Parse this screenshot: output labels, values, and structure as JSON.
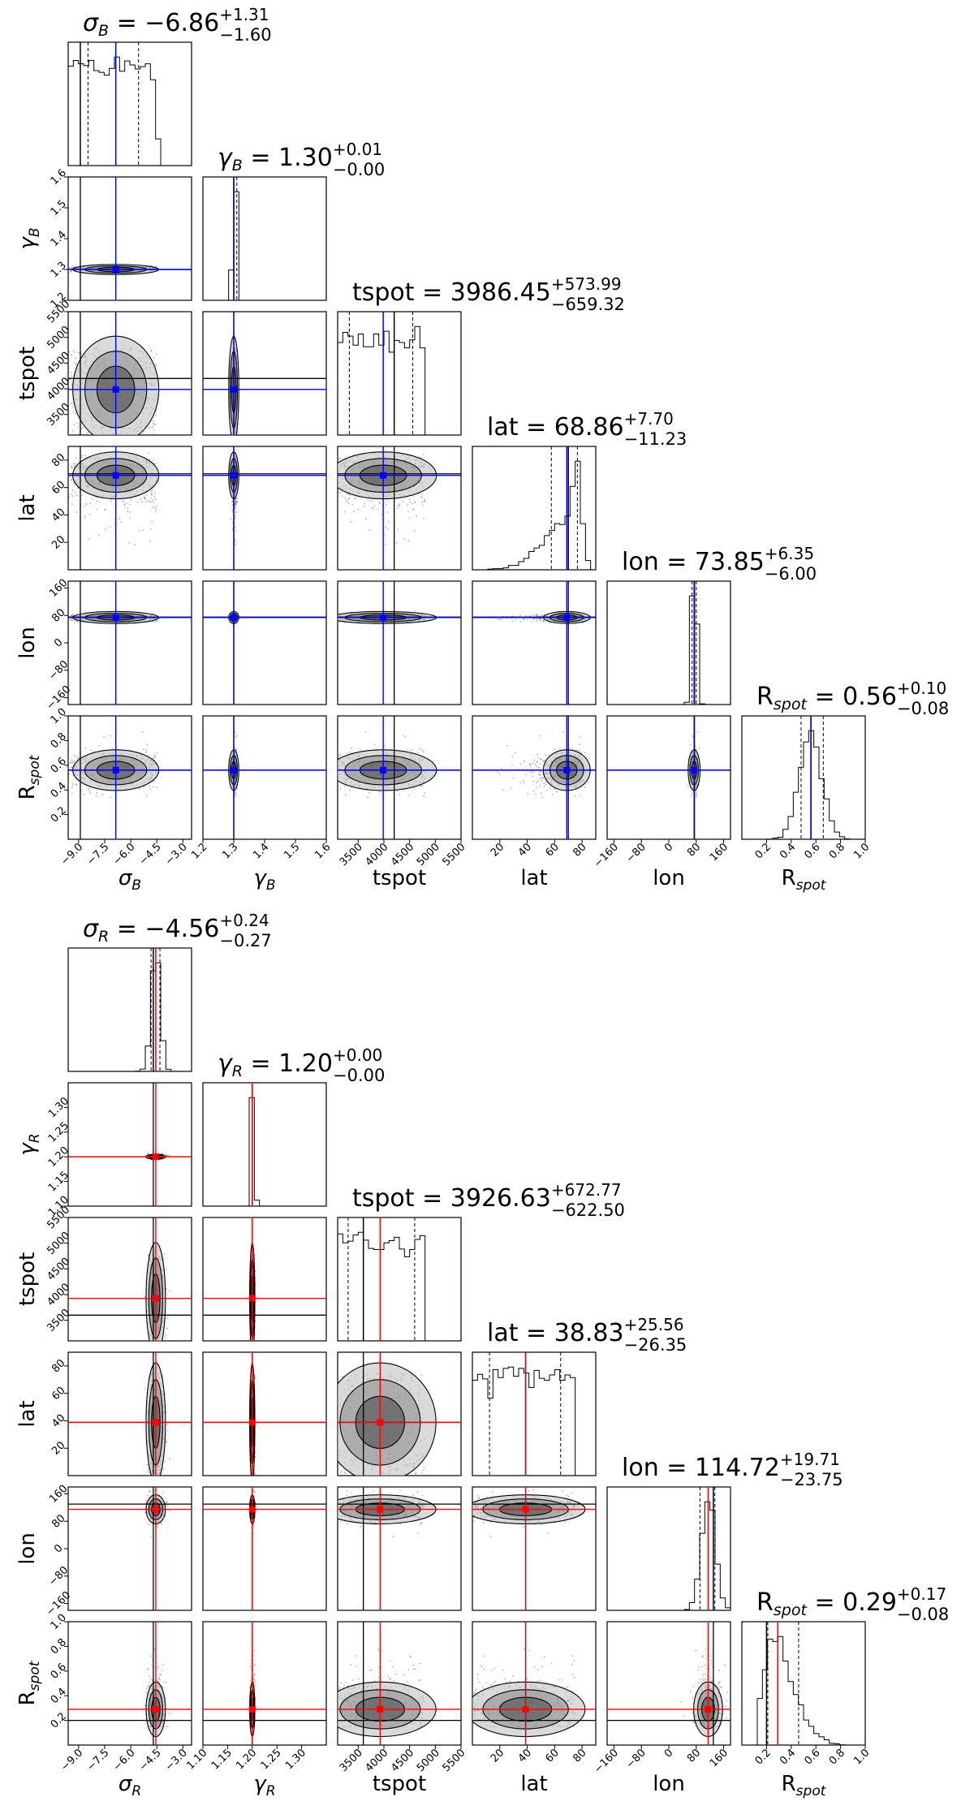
{
  "chart_data": [
    {
      "type": "corner",
      "name": "blue",
      "truth_color": "#000000",
      "median_color": "#0000ff",
      "parameters": [
        {
          "key": "sigma",
          "label_base": "σ",
          "label_sub": "B",
          "range": [
            -9.6,
            -2.5
          ],
          "ticks": [
            -9.0,
            -7.5,
            -6.0,
            -4.5,
            -3.0
          ],
          "ticklabels": [
            "−9.0",
            "−7.5",
            "−6.0",
            "−4.5",
            "−3.0"
          ],
          "median": -6.86,
          "plus": "+1.31",
          "minus": "−1.60",
          "value_text": "−6.86",
          "truth": -8.9,
          "q16": -8.46,
          "q84": -5.55,
          "dist": {
            "kind": "uniform",
            "lo": -9.6,
            "hi": -4.5
          }
        },
        {
          "key": "gamma",
          "label_base": "γ",
          "label_sub": "B",
          "range": [
            1.2,
            1.6
          ],
          "ticks": [
            1.2,
            1.3,
            1.4,
            1.5,
            1.6
          ],
          "ticklabels": [
            "1.2",
            "1.3",
            "1.4",
            "1.5",
            "1.6"
          ],
          "median": 1.3,
          "plus": "+0.01",
          "minus": "−0.00",
          "value_text": "1.30",
          "truth": 1.3,
          "q16": 1.3,
          "q84": 1.31,
          "dist": {
            "kind": "normal",
            "mu": 1.303,
            "sd": 0.004
          }
        },
        {
          "key": "tspot",
          "label_base": "tspot",
          "label_sub": "",
          "range": [
            3100,
            5500
          ],
          "ticks": [
            3500,
            4000,
            4500,
            5000,
            5500
          ],
          "ticklabels": [
            "3500",
            "4000",
            "4500",
            "5000",
            "5500"
          ],
          "median": 3986.45,
          "plus": "+573.99",
          "minus": "−659.32",
          "value_text": "3986.45",
          "truth": 4200,
          "q16": 3327,
          "q84": 4560,
          "dist": {
            "kind": "uniform",
            "lo": 3100,
            "hi": 4800
          }
        },
        {
          "key": "lat",
          "label_base": "lat",
          "label_sub": "",
          "range": [
            0,
            90
          ],
          "ticks": [
            20,
            40,
            60,
            80
          ],
          "ticklabels": [
            "20",
            "40",
            "60",
            "80"
          ],
          "median": 68.86,
          "plus": "+7.70",
          "minus": "−11.23",
          "value_text": "68.86",
          "truth": 70,
          "q16": 57.6,
          "q84": 76.6,
          "dist": {
            "kind": "skew",
            "mode": 74,
            "lo": 5,
            "hi": 85
          }
        },
        {
          "key": "lon",
          "label_base": "lon",
          "label_sub": "",
          "range": [
            -180,
            180
          ],
          "ticks": [
            -160,
            -80,
            0,
            80,
            160
          ],
          "ticklabels": [
            "−160",
            "−80",
            "0",
            "80",
            "160"
          ],
          "median": 73.85,
          "plus": "+6.35",
          "minus": "−6.00",
          "value_text": "73.85",
          "truth": 75,
          "q16": 67.9,
          "q84": 80.2,
          "dist": {
            "kind": "normal",
            "mu": 74,
            "sd": 6
          }
        },
        {
          "key": "rspot",
          "label_base": "R",
          "label_sub": "spot",
          "range": [
            0,
            1.0
          ],
          "ticks": [
            0.2,
            0.4,
            0.6,
            0.8,
            1.0
          ],
          "ticklabels": [
            "0.2",
            "0.4",
            "0.6",
            "0.8",
            "1.0"
          ],
          "median": 0.56,
          "plus": "+0.10",
          "minus": "−0.08",
          "value_text": "0.56",
          "truth": 0.56,
          "q16": 0.48,
          "q84": 0.66,
          "dist": {
            "kind": "normal",
            "mu": 0.56,
            "sd": 0.09
          }
        }
      ]
    },
    {
      "type": "corner",
      "name": "red",
      "truth_color": "#000000",
      "median_color": "#ff0000",
      "parameters": [
        {
          "key": "sigma",
          "label_base": "σ",
          "label_sub": "R",
          "range": [
            -9.6,
            -2.5
          ],
          "ticks": [
            -9.0,
            -7.5,
            -6.0,
            -4.5,
            -3.0
          ],
          "ticklabels": [
            "−9.0",
            "−7.5",
            "−6.0",
            "−4.5",
            "−3.0"
          ],
          "median": -4.56,
          "plus": "+0.24",
          "minus": "−0.27",
          "value_text": "−4.56",
          "truth": -4.7,
          "q16": -4.83,
          "q84": -4.32,
          "dist": {
            "kind": "normal",
            "mu": -4.56,
            "sd": 0.25
          }
        },
        {
          "key": "gamma",
          "label_base": "γ",
          "label_sub": "R",
          "range": [
            1.1,
            1.35
          ],
          "ticks": [
            1.1,
            1.15,
            1.2,
            1.25,
            1.3
          ],
          "ticklabels": [
            "1.10",
            "1.15",
            "1.20",
            "1.25",
            "1.30"
          ],
          "median": 1.2,
          "plus": "+0.00",
          "minus": "−0.00",
          "value_text": "1.20",
          "truth": 1.2,
          "q16": 1.2,
          "q84": 1.2,
          "dist": {
            "kind": "normal",
            "mu": 1.201,
            "sd": 0.002
          }
        },
        {
          "key": "tspot",
          "label_base": "tspot",
          "label_sub": "",
          "range": [
            3100,
            5500
          ],
          "ticks": [
            3500,
            4000,
            4500,
            5000,
            5500
          ],
          "ticklabels": [
            "3500",
            "4000",
            "4500",
            "5000",
            "5500"
          ],
          "median": 3926.63,
          "plus": "+672.77",
          "minus": "−622.50",
          "value_text": "3926.63",
          "truth": 3600,
          "q16": 3304,
          "q84": 4599,
          "dist": {
            "kind": "uniform",
            "lo": 3100,
            "hi": 4800
          }
        },
        {
          "key": "lat",
          "label_base": "lat",
          "label_sub": "",
          "range": [
            0,
            90
          ],
          "ticks": [
            20,
            40,
            60,
            80
          ],
          "ticklabels": [
            "20",
            "40",
            "60",
            "80"
          ],
          "median": 38.83,
          "plus": "+25.56",
          "minus": "−26.35",
          "value_text": "38.83",
          "truth": 38.83,
          "q16": 12.5,
          "q84": 64.4,
          "dist": {
            "kind": "uniform",
            "lo": 0,
            "hi": 75
          }
        },
        {
          "key": "lon",
          "label_base": "lon",
          "label_sub": "",
          "range": [
            -180,
            180
          ],
          "ticks": [
            -160,
            -80,
            0,
            80,
            160
          ],
          "ticklabels": [
            "−160",
            "−80",
            "0",
            "80",
            "160"
          ],
          "median": 114.72,
          "plus": "+19.71",
          "minus": "−23.75",
          "value_text": "114.72",
          "truth": 130,
          "q16": 91.0,
          "q84": 134.4,
          "dist": {
            "kind": "normal",
            "mu": 115,
            "sd": 20
          }
        },
        {
          "key": "rspot",
          "label_base": "R",
          "label_sub": "spot",
          "range": [
            0,
            1.0
          ],
          "ticks": [
            0.2,
            0.4,
            0.6,
            0.8,
            1.0
          ],
          "ticklabels": [
            "0.2",
            "0.4",
            "0.6",
            "0.8",
            "1.0"
          ],
          "median": 0.29,
          "plus": "+0.17",
          "minus": "−0.08",
          "value_text": "0.29",
          "truth": 0.2,
          "q16": 0.21,
          "q84": 0.46,
          "dist": {
            "kind": "skew_right",
            "lo": 0.15,
            "hi": 0.95,
            "mode": 0.22
          }
        }
      ]
    }
  ]
}
